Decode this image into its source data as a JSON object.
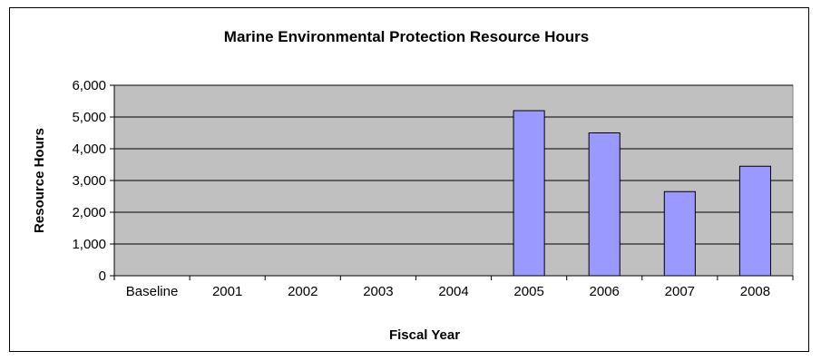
{
  "chart_data": {
    "type": "bar",
    "title": "Marine Environmental Protection Resource Hours",
    "xlabel": "Fiscal Year",
    "ylabel": "Resource Hours",
    "categories": [
      "Baseline",
      "2001",
      "2002",
      "2003",
      "2004",
      "2005",
      "2006",
      "2007",
      "2008"
    ],
    "values": [
      0,
      0,
      0,
      0,
      0,
      5200,
      4500,
      2650,
      3450
    ],
    "ylim": [
      0,
      6000
    ],
    "yticks": [
      "0",
      "1,000",
      "2,000",
      "3,000",
      "4,000",
      "5,000",
      "6,000"
    ],
    "grid": true,
    "legend": "none",
    "colors": {
      "plot_background": "#c0c0c0",
      "bar_fill": "#9999ff",
      "bar_stroke": "#000000",
      "gridline": "#000000"
    }
  }
}
